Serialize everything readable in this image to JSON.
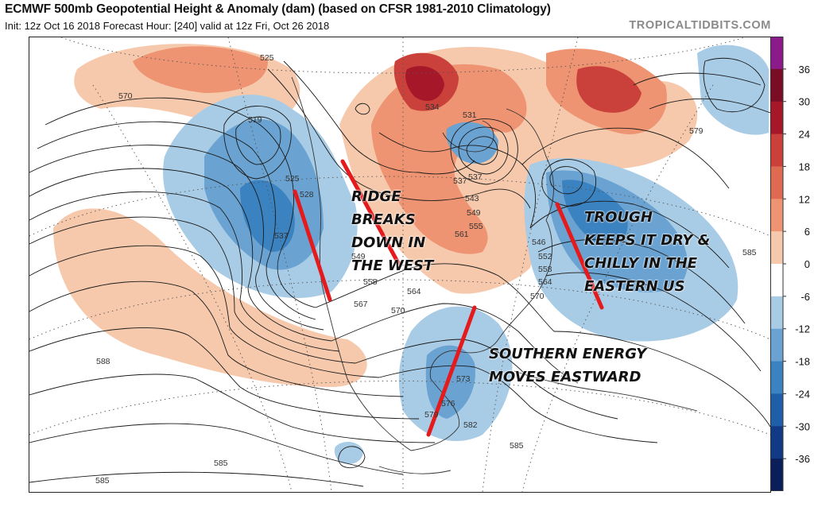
{
  "header": {
    "title": "ECMWF 500mb Geopotential Height & Anomaly (dam) (based on CFSR 1981-2010 Climatology)",
    "subtitle": "Init: 12z Oct 16 2018   Forecast Hour: [240]   valid at 12z Fri, Oct 26 2018",
    "brand": "TROPICALTIDBITS.COM"
  },
  "colors": {
    "neg_36": "#0a1f5a",
    "neg_30": "#123a84",
    "neg_24": "#1f5fa8",
    "neg_18": "#3b82c0",
    "neg_12": "#6aa3d2",
    "neg_6": "#a9cce6",
    "zero": "#ffffff",
    "pos_6": "#f6c9ac",
    "pos_12": "#ee9472",
    "pos_18": "#de6a51",
    "pos_24": "#c9413a",
    "pos_30": "#a6172a",
    "pos_36": "#7a0d26",
    "top": "#8b1a8b",
    "annotation_line": "#e41a1c"
  },
  "colorbar": {
    "ticks": [
      "36",
      "30",
      "24",
      "18",
      "12",
      "6",
      "0",
      "-6",
      "-12",
      "-18",
      "-24",
      "-30",
      "-36"
    ]
  },
  "contour_labels": [
    "525",
    "570",
    "519",
    "525",
    "528",
    "537",
    "534",
    "531",
    "537",
    "543",
    "549",
    "555",
    "561",
    "549",
    "558",
    "564",
    "567",
    "570",
    "546",
    "552",
    "558",
    "564",
    "570",
    "579",
    "585",
    "588",
    "585",
    "573",
    "576",
    "579",
    "582",
    "585",
    "585",
    "537"
  ],
  "annotations": [
    {
      "id": "ridge",
      "lines": [
        "RIDGE",
        "BREAKS",
        "DOWN IN",
        "THE WEST"
      ]
    },
    {
      "id": "trough",
      "lines": [
        "TROUGH",
        "KEEPS IT DRY &",
        "CHILLY IN THE",
        "EASTERN US"
      ]
    },
    {
      "id": "southern",
      "lines": [
        "SOUTHERN ENERGY",
        "MOVES EASTWARD"
      ]
    }
  ]
}
